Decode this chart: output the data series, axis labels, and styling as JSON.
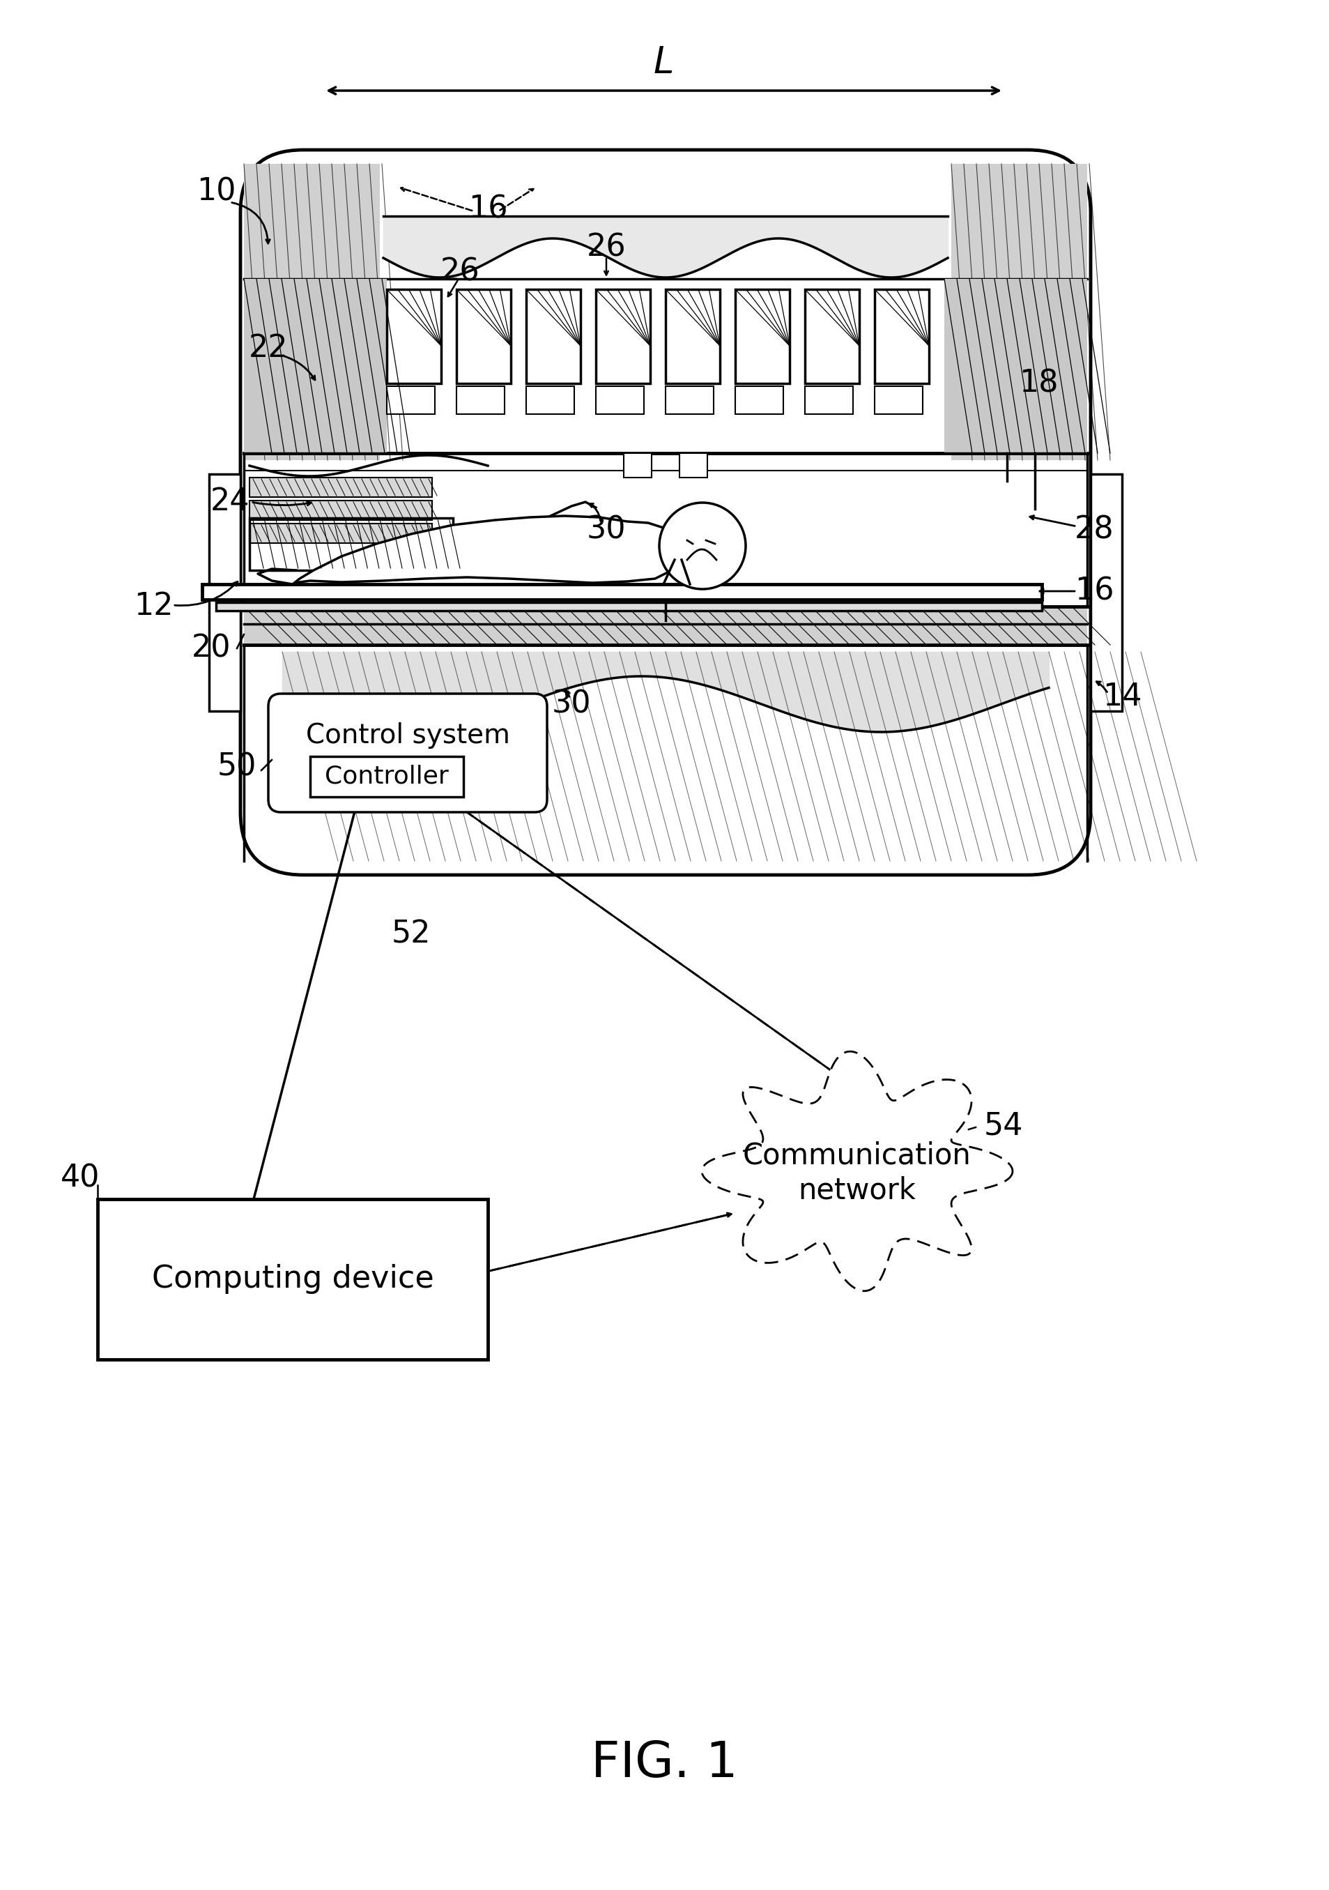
{
  "bg_color": "#ffffff",
  "fig_label": "FIG. 1",
  "L_label": "L",
  "control_system_text": "Control system",
  "controller_text": "Controller",
  "computing_device_text": "Computing device",
  "comm_network_text1": "Communication",
  "comm_network_text2": "network"
}
